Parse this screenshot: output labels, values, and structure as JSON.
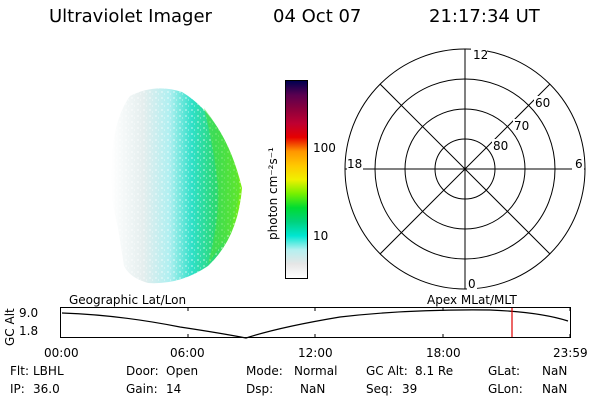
{
  "header": {
    "instrument": "Ultraviolet Imager",
    "date": "04 Oct 07",
    "time": "21:17:34 UT"
  },
  "colorbar": {
    "unit_label": "photon cm⁻²s⁻¹",
    "ticks": [
      "100",
      "10"
    ],
    "stops": [
      "#ffffff",
      "#e6e6e6",
      "#b4f0f0",
      "#00e6d2",
      "#00d27d",
      "#00dc32",
      "#78f000",
      "#f0f000",
      "#ffc800",
      "#ff9600",
      "#e60000",
      "#be0032",
      "#8c003c",
      "#5a0050",
      "#000050"
    ]
  },
  "polar": {
    "mlt_labels": {
      "top": "12",
      "right": "6",
      "bottom": "0",
      "left": "18"
    },
    "lat_labels": [
      "60",
      "70",
      "80"
    ]
  },
  "timeline": {
    "left_label": "Geographic Lat/Lon",
    "right_label": "Apex MLat/MLT",
    "y_label": "GC Alt",
    "y_ticks": [
      "9.0",
      "1.8"
    ],
    "x_ticks": [
      "00:00",
      "06:00",
      "12:00",
      "18:00",
      "23:59"
    ]
  },
  "status": {
    "flt_label": "Flt:",
    "flt_value": "LBHL",
    "ip_label": "IP:",
    "ip_value": "36.0",
    "door_label": "Door:",
    "door_value": "Open",
    "gain_label": "Gain:",
    "gain_value": "14",
    "mode_label": "Mode:",
    "mode_value": "Normal",
    "dsp_label": "Dsp:",
    "dsp_value": "NaN",
    "gcalt_label": "GC Alt:",
    "gcalt_value": "8.1 Re",
    "seq_label": "Seq:",
    "seq_value": "39",
    "glat_label": "GLat:",
    "glat_value": "NaN",
    "glon_label": "GLon:",
    "glon_value": "NaN"
  }
}
